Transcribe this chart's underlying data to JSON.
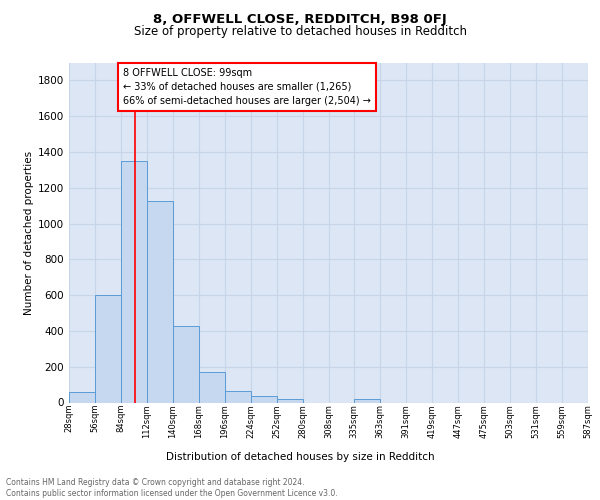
{
  "title1": "8, OFFWELL CLOSE, REDDITCH, B98 0FJ",
  "title2": "Size of property relative to detached houses in Redditch",
  "xlabel": "Distribution of detached houses by size in Redditch",
  "ylabel": "Number of detached properties",
  "bar_edges": [
    28,
    56,
    84,
    112,
    140,
    168,
    196,
    224,
    252,
    280,
    308,
    335,
    363,
    391,
    419,
    447,
    475,
    503,
    531,
    559,
    587
  ],
  "bar_heights": [
    60,
    600,
    1350,
    1125,
    430,
    170,
    65,
    38,
    18,
    0,
    0,
    18,
    0,
    0,
    0,
    0,
    0,
    0,
    0,
    0
  ],
  "bar_color": "#c5d8ef",
  "bar_edge_color": "#5b9bd5",
  "grid_color": "#c8d4e8",
  "bg_color": "#dce6f5",
  "red_line_x": 99,
  "annotation_text": "8 OFFWELL CLOSE: 99sqm\n← 33% of detached houses are smaller (1,265)\n66% of semi-detached houses are larger (2,504) →",
  "annotation_box_color": "white",
  "annotation_border_color": "red",
  "ylim": [
    0,
    1900
  ],
  "yticks": [
    0,
    200,
    400,
    600,
    800,
    1000,
    1200,
    1400,
    1600,
    1800
  ],
  "footer_text": "Contains HM Land Registry data © Crown copyright and database right 2024.\nContains public sector information licensed under the Open Government Licence v3.0.",
  "tick_labels": [
    "28sqm",
    "56sqm",
    "84sqm",
    "112sqm",
    "140sqm",
    "168sqm",
    "196sqm",
    "224sqm",
    "252sqm",
    "280sqm",
    "308sqm",
    "335sqm",
    "363sqm",
    "391sqm",
    "419sqm",
    "447sqm",
    "475sqm",
    "503sqm",
    "531sqm",
    "559sqm",
    "587sqm"
  ]
}
